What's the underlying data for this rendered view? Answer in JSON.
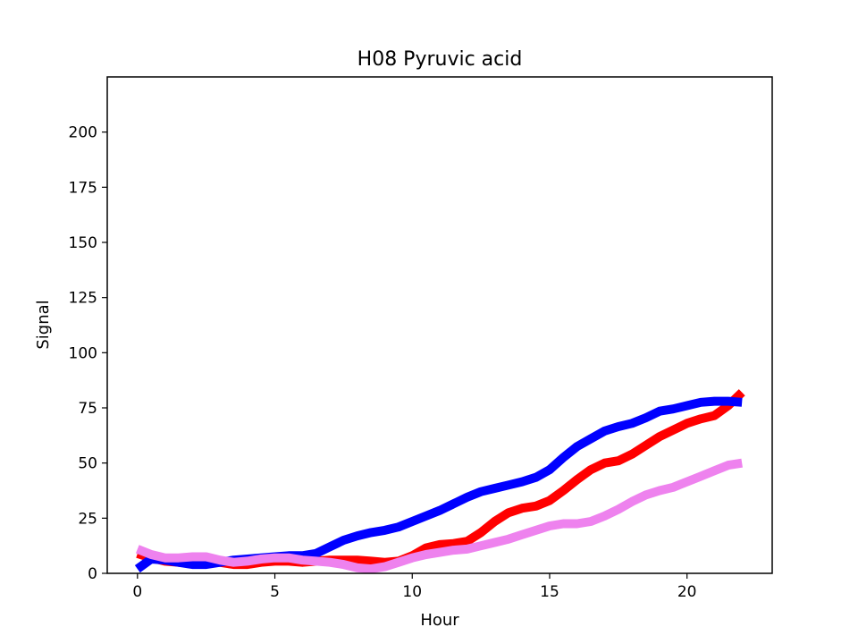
{
  "chart_data": {
    "type": "line",
    "title": "H08 Pyruvic acid",
    "xlabel": "Hour",
    "ylabel": "Signal",
    "xlim": [
      -1.1,
      23.1
    ],
    "ylim": [
      0,
      225
    ],
    "xticks": [
      0,
      5,
      10,
      15,
      20
    ],
    "yticks": [
      0,
      25,
      50,
      75,
      100,
      125,
      150,
      175,
      200
    ],
    "grid": false,
    "legend": "none",
    "x": [
      0,
      0.5,
      1,
      1.5,
      2,
      2.5,
      3,
      3.5,
      4,
      4.5,
      5,
      5.5,
      6,
      6.5,
      7,
      7.5,
      8,
      8.5,
      9,
      9.5,
      10,
      10.5,
      11,
      11.5,
      12,
      12.5,
      13,
      13.5,
      14,
      14.5,
      15,
      15.5,
      16,
      16.5,
      17,
      17.5,
      18,
      18.5,
      19,
      19.5,
      20,
      20.5,
      21,
      21.5,
      22
    ],
    "series": [
      {
        "color": "#ff0000",
        "values": [
          9,
          7,
          5.5,
          5,
          5,
          5,
          5,
          4,
          4,
          5,
          5.5,
          5.5,
          5,
          5.5,
          6,
          6,
          6,
          5.5,
          5,
          5.5,
          8,
          11.5,
          13,
          13.5,
          14.5,
          18.5,
          23.5,
          27.5,
          29.5,
          30.5,
          33,
          37.5,
          42.5,
          47,
          50,
          51,
          54,
          58,
          62,
          65,
          68,
          70,
          71.5,
          76,
          82
        ]
      },
      {
        "color": "#0000ff",
        "values": [
          2,
          6.5,
          6,
          5,
          4,
          4,
          5,
          6,
          6.5,
          7,
          7.5,
          8,
          8,
          9,
          12,
          15,
          17,
          18.5,
          19.5,
          21,
          23.5,
          26,
          28.5,
          31.5,
          34.5,
          37,
          38.5,
          40,
          41.5,
          43.5,
          47,
          52.5,
          57.5,
          61,
          64.5,
          66.5,
          68,
          70.5,
          73.5,
          74.5,
          76,
          77.5,
          78,
          78,
          77.5
        ]
      },
      {
        "color": "#ee82ee",
        "values": [
          11,
          8.5,
          7,
          7,
          7.5,
          7.5,
          6,
          5,
          5.5,
          6.5,
          7,
          7,
          6,
          5.5,
          5,
          4,
          2.5,
          2,
          3,
          5,
          7,
          8.5,
          9.5,
          10.5,
          11,
          12.5,
          14,
          15.5,
          17.5,
          19.5,
          21.5,
          22.5,
          22.5,
          23.5,
          26,
          29,
          32.5,
          35.5,
          37.5,
          39,
          41.5,
          44,
          46.5,
          49,
          50
        ]
      }
    ]
  }
}
